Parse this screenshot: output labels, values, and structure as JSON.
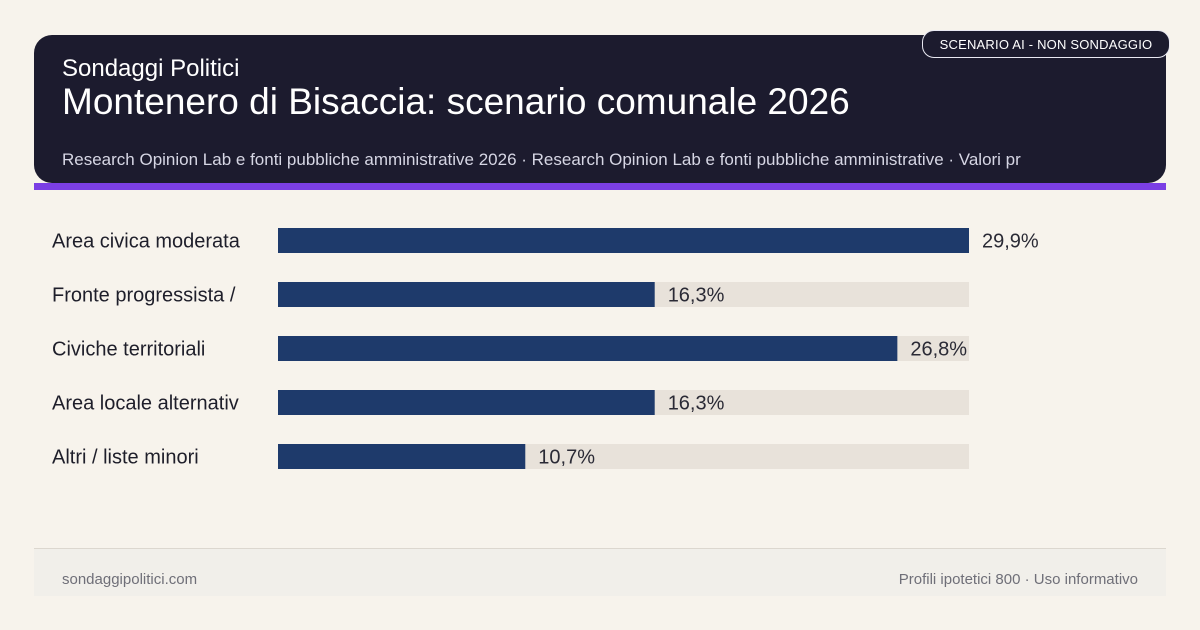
{
  "header": {
    "brand": "Sondaggi Politici",
    "title": "Montenero di Bisaccia: scenario comunale 2026",
    "subtitle": "Research Opinion Lab e fonti pubbliche amministrative 2026 · Research Opinion Lab e fonti pubbliche amministrative · Valori pr"
  },
  "badge": "SCENARIO AI - NON SONDAGGIO",
  "colors": {
    "header_bg": "#1c1b2e",
    "accent": "#7b3fe4",
    "bar": "#1e3a6b",
    "track": "#e8e2da",
    "background": "#f7f3ec"
  },
  "chart_data": {
    "type": "bar",
    "orientation": "horizontal",
    "categories": [
      "Area civica moderata",
      "Fronte progressista /",
      "Civiche territoriali",
      "Area locale alternativ",
      "Altri / liste minori"
    ],
    "values": [
      29.9,
      16.3,
      26.8,
      16.3,
      10.7
    ],
    "value_labels": [
      "29,9%",
      "16,3%",
      "26,8%",
      "16,3%",
      "10,7%"
    ],
    "xlim": [
      0,
      29.9
    ],
    "grid": false,
    "legend": "none"
  },
  "footer": {
    "left": "sondaggipolitici.com",
    "right": "Profili ipotetici 800 · Uso informativo"
  }
}
